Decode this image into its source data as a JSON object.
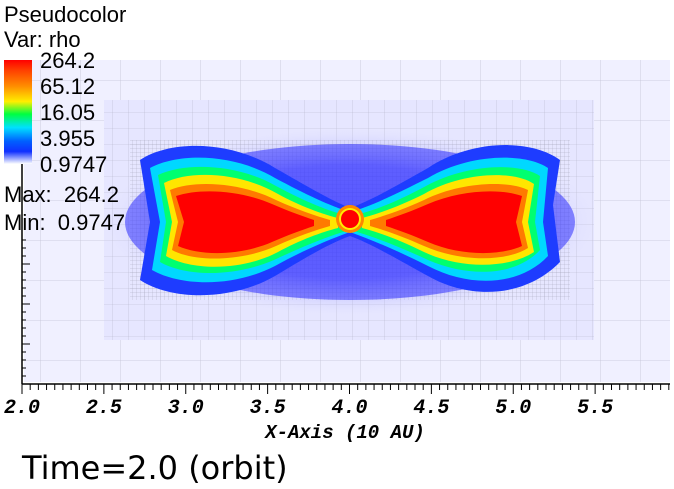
{
  "legend": {
    "plot_type": "Pseudocolor",
    "variable": "Var: rho",
    "colorbar_labels": [
      "264.2",
      "65.12",
      "16.05",
      "3.955",
      "0.9747"
    ],
    "max_text": "Max:  264.2",
    "min_text": "Min:  0.9747"
  },
  "chart_data": {
    "type": "heatmap",
    "variable": "rho",
    "color_scale": "log",
    "value_range": [
      0.9747,
      264.2
    ],
    "colorbar_ticks": [
      264.2,
      65.12,
      16.05,
      3.955,
      0.9747
    ],
    "colormap": [
      "#ff0000",
      "#ff8c00",
      "#ffee00",
      "#00ff40",
      "#00e0ff",
      "#0060ff",
      "#ffffff"
    ],
    "xlabel": "X-Axis (10 AU)",
    "x_ticks": [
      "2.0",
      "2.5",
      "3.0",
      "3.5",
      "4.0",
      "4.5",
      "5.0",
      "5.5"
    ],
    "xlim": [
      2.0,
      6.0
    ],
    "structures": [
      {
        "name": "central-core",
        "x": 4.0,
        "y": 0.0,
        "rho": 264.2
      },
      {
        "name": "left-lobe",
        "x": 3.3,
        "y": 0.0,
        "rho": 200
      },
      {
        "name": "right-lobe",
        "x": 4.7,
        "y": 0.0,
        "rho": 200
      }
    ]
  },
  "footer": {
    "time_text": "Time=2.0 (orbit)"
  }
}
